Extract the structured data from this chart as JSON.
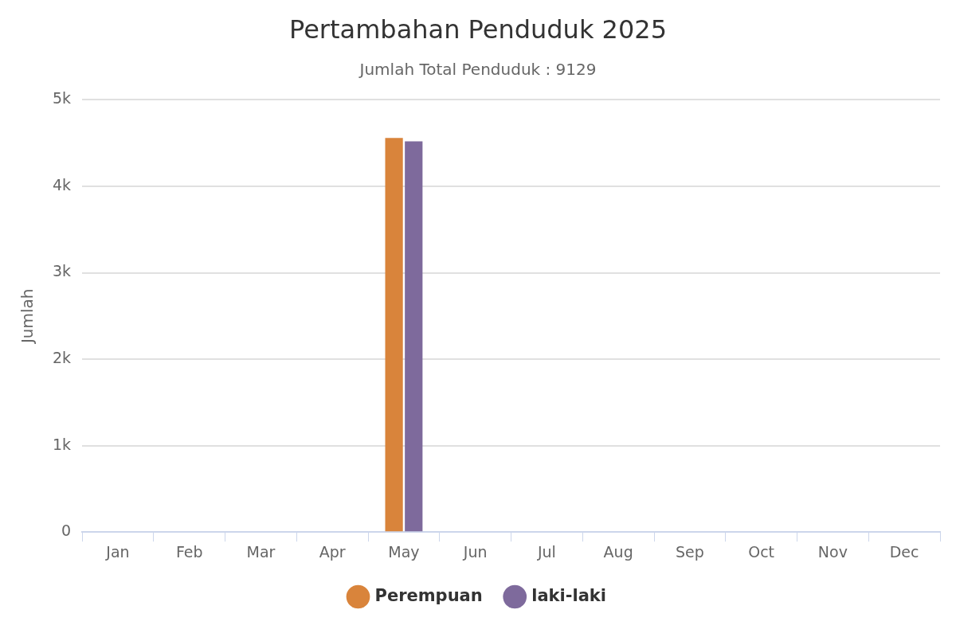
{
  "chart_data": {
    "type": "bar",
    "title": "Pertambahan Penduduk 2025",
    "subtitle": "Jumlah Total Penduduk : 9129",
    "ylabel": "Jumlah",
    "categories": [
      "Jan",
      "Feb",
      "Mar",
      "Apr",
      "May",
      "Jun",
      "Jul",
      "Aug",
      "Sep",
      "Oct",
      "Nov",
      "Dec"
    ],
    "series": [
      {
        "name": "Perempuan",
        "color": "#d9843b",
        "values": [
          0,
          0,
          0,
          0,
          4560,
          0,
          0,
          0,
          0,
          0,
          0,
          0
        ]
      },
      {
        "name": "laki-laki",
        "color": "#7e6a9c",
        "values": [
          0,
          0,
          0,
          0,
          4520,
          0,
          0,
          0,
          0,
          0,
          0,
          0
        ]
      }
    ],
    "ylim": [
      0,
      5000
    ],
    "yticks": [
      {
        "value": 0,
        "label": "0"
      },
      {
        "value": 1000,
        "label": "1k"
      },
      {
        "value": 2000,
        "label": "2k"
      },
      {
        "value": 3000,
        "label": "3k"
      },
      {
        "value": 4000,
        "label": "4k"
      },
      {
        "value": 5000,
        "label": "5k"
      }
    ],
    "grid": "y",
    "legend": "bottom"
  }
}
